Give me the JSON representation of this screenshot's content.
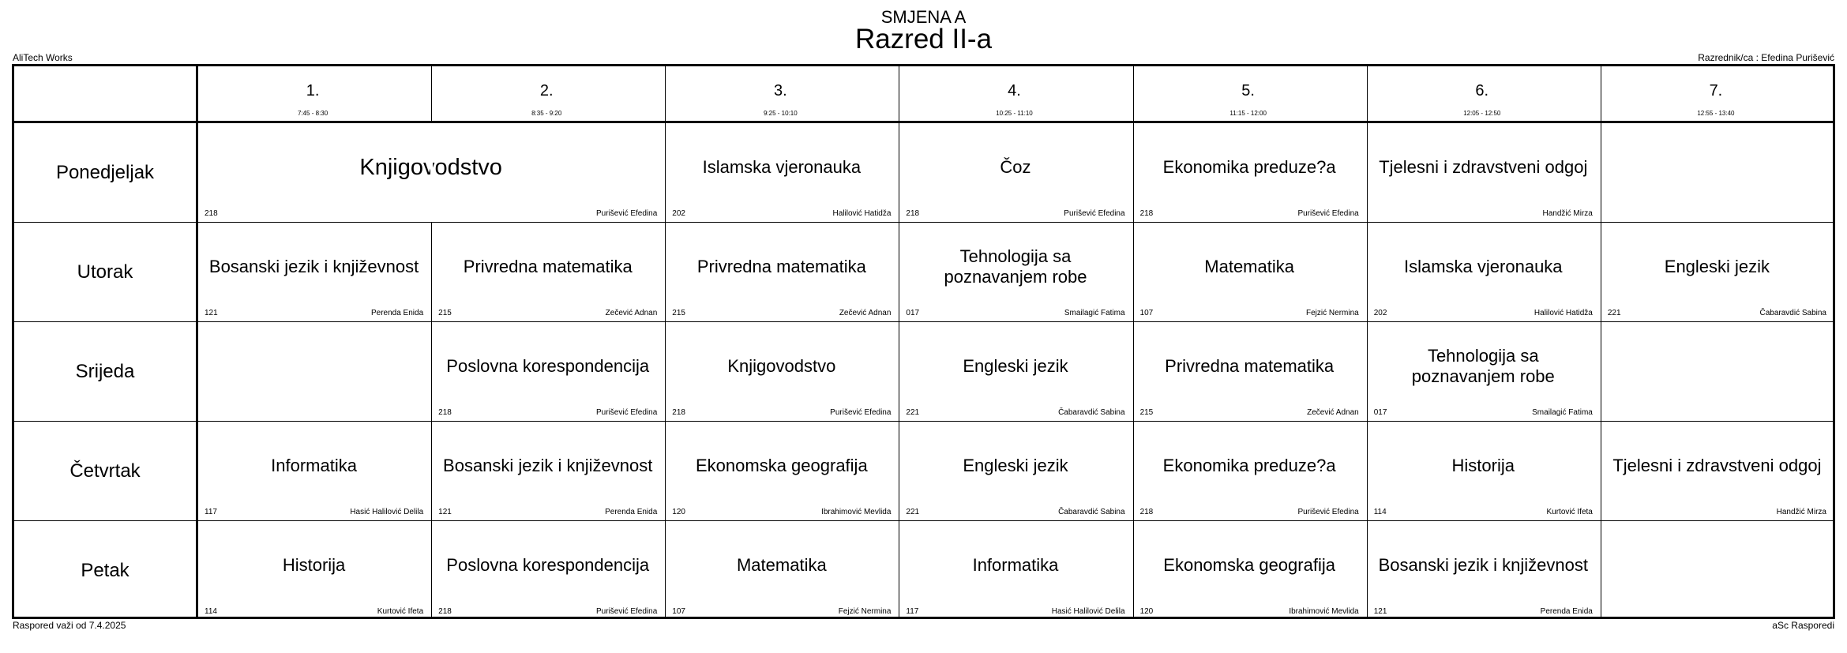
{
  "header": {
    "shift": "SMJENA A",
    "title": "Razred II-a",
    "left_note": "AliTech Works",
    "right_note": "Razrednik/ca : Efedina Purišević"
  },
  "footer": {
    "left_note": "Raspored važi od 7.4.2025",
    "right_note": "aSc Rasporedi"
  },
  "periods": [
    {
      "num": "1.",
      "time": "7:45 - 8:30"
    },
    {
      "num": "2.",
      "time": "8:35 - 9:20"
    },
    {
      "num": "3.",
      "time": "9:25 - 10:10"
    },
    {
      "num": "4.",
      "time": "10:25 - 11:10"
    },
    {
      "num": "5.",
      "time": "11:15 - 12:00"
    },
    {
      "num": "6.",
      "time": "12:05 - 12:50"
    },
    {
      "num": "7.",
      "time": "12:55 - 13:40"
    }
  ],
  "days": [
    {
      "name": "Ponedjeljak",
      "lessons": [
        {
          "start": 1,
          "span": 2,
          "subject": "Knjigovodstvo",
          "room": "218",
          "teacher": "Purišević Efedina"
        },
        {
          "start": 3,
          "span": 1,
          "subject": "Islamska vjeronauka",
          "room": "202",
          "teacher": "Halilović Hatidža"
        },
        {
          "start": 4,
          "span": 1,
          "subject": "Čoz",
          "room": "218",
          "teacher": "Purišević Efedina"
        },
        {
          "start": 5,
          "span": 1,
          "subject": "Ekonomika preduze?a",
          "room": "218",
          "teacher": "Purišević Efedina"
        },
        {
          "start": 6,
          "span": 1,
          "subject": "Tjelesni i zdravstveni odgoj",
          "room": "",
          "teacher": "Handžić Mirza"
        }
      ]
    },
    {
      "name": "Utorak",
      "lessons": [
        {
          "start": 1,
          "span": 1,
          "subject": "Bosanski jezik i književnost",
          "room": "121",
          "teacher": "Perenda Enida"
        },
        {
          "start": 2,
          "span": 1,
          "subject": "Privredna matematika",
          "room": "215",
          "teacher": "Zečević Adnan"
        },
        {
          "start": 3,
          "span": 1,
          "subject": "Privredna matematika",
          "room": "215",
          "teacher": "Zečević Adnan"
        },
        {
          "start": 4,
          "span": 1,
          "subject": "Tehnologija sa poznavanjem robe",
          "room": "017",
          "teacher": "Smailagić Fatima"
        },
        {
          "start": 5,
          "span": 1,
          "subject": "Matematika",
          "room": "107",
          "teacher": "Fejzić Nermina"
        },
        {
          "start": 6,
          "span": 1,
          "subject": "Islamska vjeronauka",
          "room": "202",
          "teacher": "Halilović Hatidža"
        },
        {
          "start": 7,
          "span": 1,
          "subject": "Engleski jezik",
          "room": "221",
          "teacher": "Čabaravdić Sabina"
        }
      ]
    },
    {
      "name": "Srijeda",
      "lessons": [
        {
          "start": 2,
          "span": 1,
          "subject": "Poslovna korespondencija",
          "room": "218",
          "teacher": "Purišević Efedina"
        },
        {
          "start": 3,
          "span": 1,
          "subject": "Knjigovodstvo",
          "room": "218",
          "teacher": "Purišević Efedina"
        },
        {
          "start": 4,
          "span": 1,
          "subject": "Engleski jezik",
          "room": "221",
          "teacher": "Čabaravdić Sabina"
        },
        {
          "start": 5,
          "span": 1,
          "subject": "Privredna matematika",
          "room": "215",
          "teacher": "Zečević Adnan"
        },
        {
          "start": 6,
          "span": 1,
          "subject": "Tehnologija sa poznavanjem robe",
          "room": "017",
          "teacher": "Smailagić Fatima"
        }
      ]
    },
    {
      "name": "Četvrtak",
      "lessons": [
        {
          "start": 1,
          "span": 1,
          "subject": "Informatika",
          "room": "117",
          "teacher": "Hasić Halilović Delila"
        },
        {
          "start": 2,
          "span": 1,
          "subject": "Bosanski jezik i književnost",
          "room": "121",
          "teacher": "Perenda Enida"
        },
        {
          "start": 3,
          "span": 1,
          "subject": "Ekonomska geografija",
          "room": "120",
          "teacher": "Ibrahimović Mevlida"
        },
        {
          "start": 4,
          "span": 1,
          "subject": "Engleski jezik",
          "room": "221",
          "teacher": "Čabaravdić Sabina"
        },
        {
          "start": 5,
          "span": 1,
          "subject": "Ekonomika preduze?a",
          "room": "218",
          "teacher": "Purišević Efedina"
        },
        {
          "start": 6,
          "span": 1,
          "subject": "Historija",
          "room": "114",
          "teacher": "Kurtović Ifeta"
        },
        {
          "start": 7,
          "span": 1,
          "subject": "Tjelesni i zdravstveni odgoj",
          "room": "",
          "teacher": "Handžić Mirza"
        }
      ]
    },
    {
      "name": "Petak",
      "lessons": [
        {
          "start": 1,
          "span": 1,
          "subject": "Historija",
          "room": "114",
          "teacher": "Kurtović Ifeta"
        },
        {
          "start": 2,
          "span": 1,
          "subject": "Poslovna korespondencija",
          "room": "218",
          "teacher": "Purišević Efedina"
        },
        {
          "start": 3,
          "span": 1,
          "subject": "Matematika",
          "room": "107",
          "teacher": "Fejzić Nermina"
        },
        {
          "start": 4,
          "span": 1,
          "subject": "Informatika",
          "room": "117",
          "teacher": "Hasić Halilović Delila"
        },
        {
          "start": 5,
          "span": 1,
          "subject": "Ekonomska geografija",
          "room": "120",
          "teacher": "Ibrahimović Mevlida"
        },
        {
          "start": 6,
          "span": 1,
          "subject": "Bosanski jezik i književnost",
          "room": "121",
          "teacher": "Perenda Enida"
        }
      ]
    }
  ]
}
